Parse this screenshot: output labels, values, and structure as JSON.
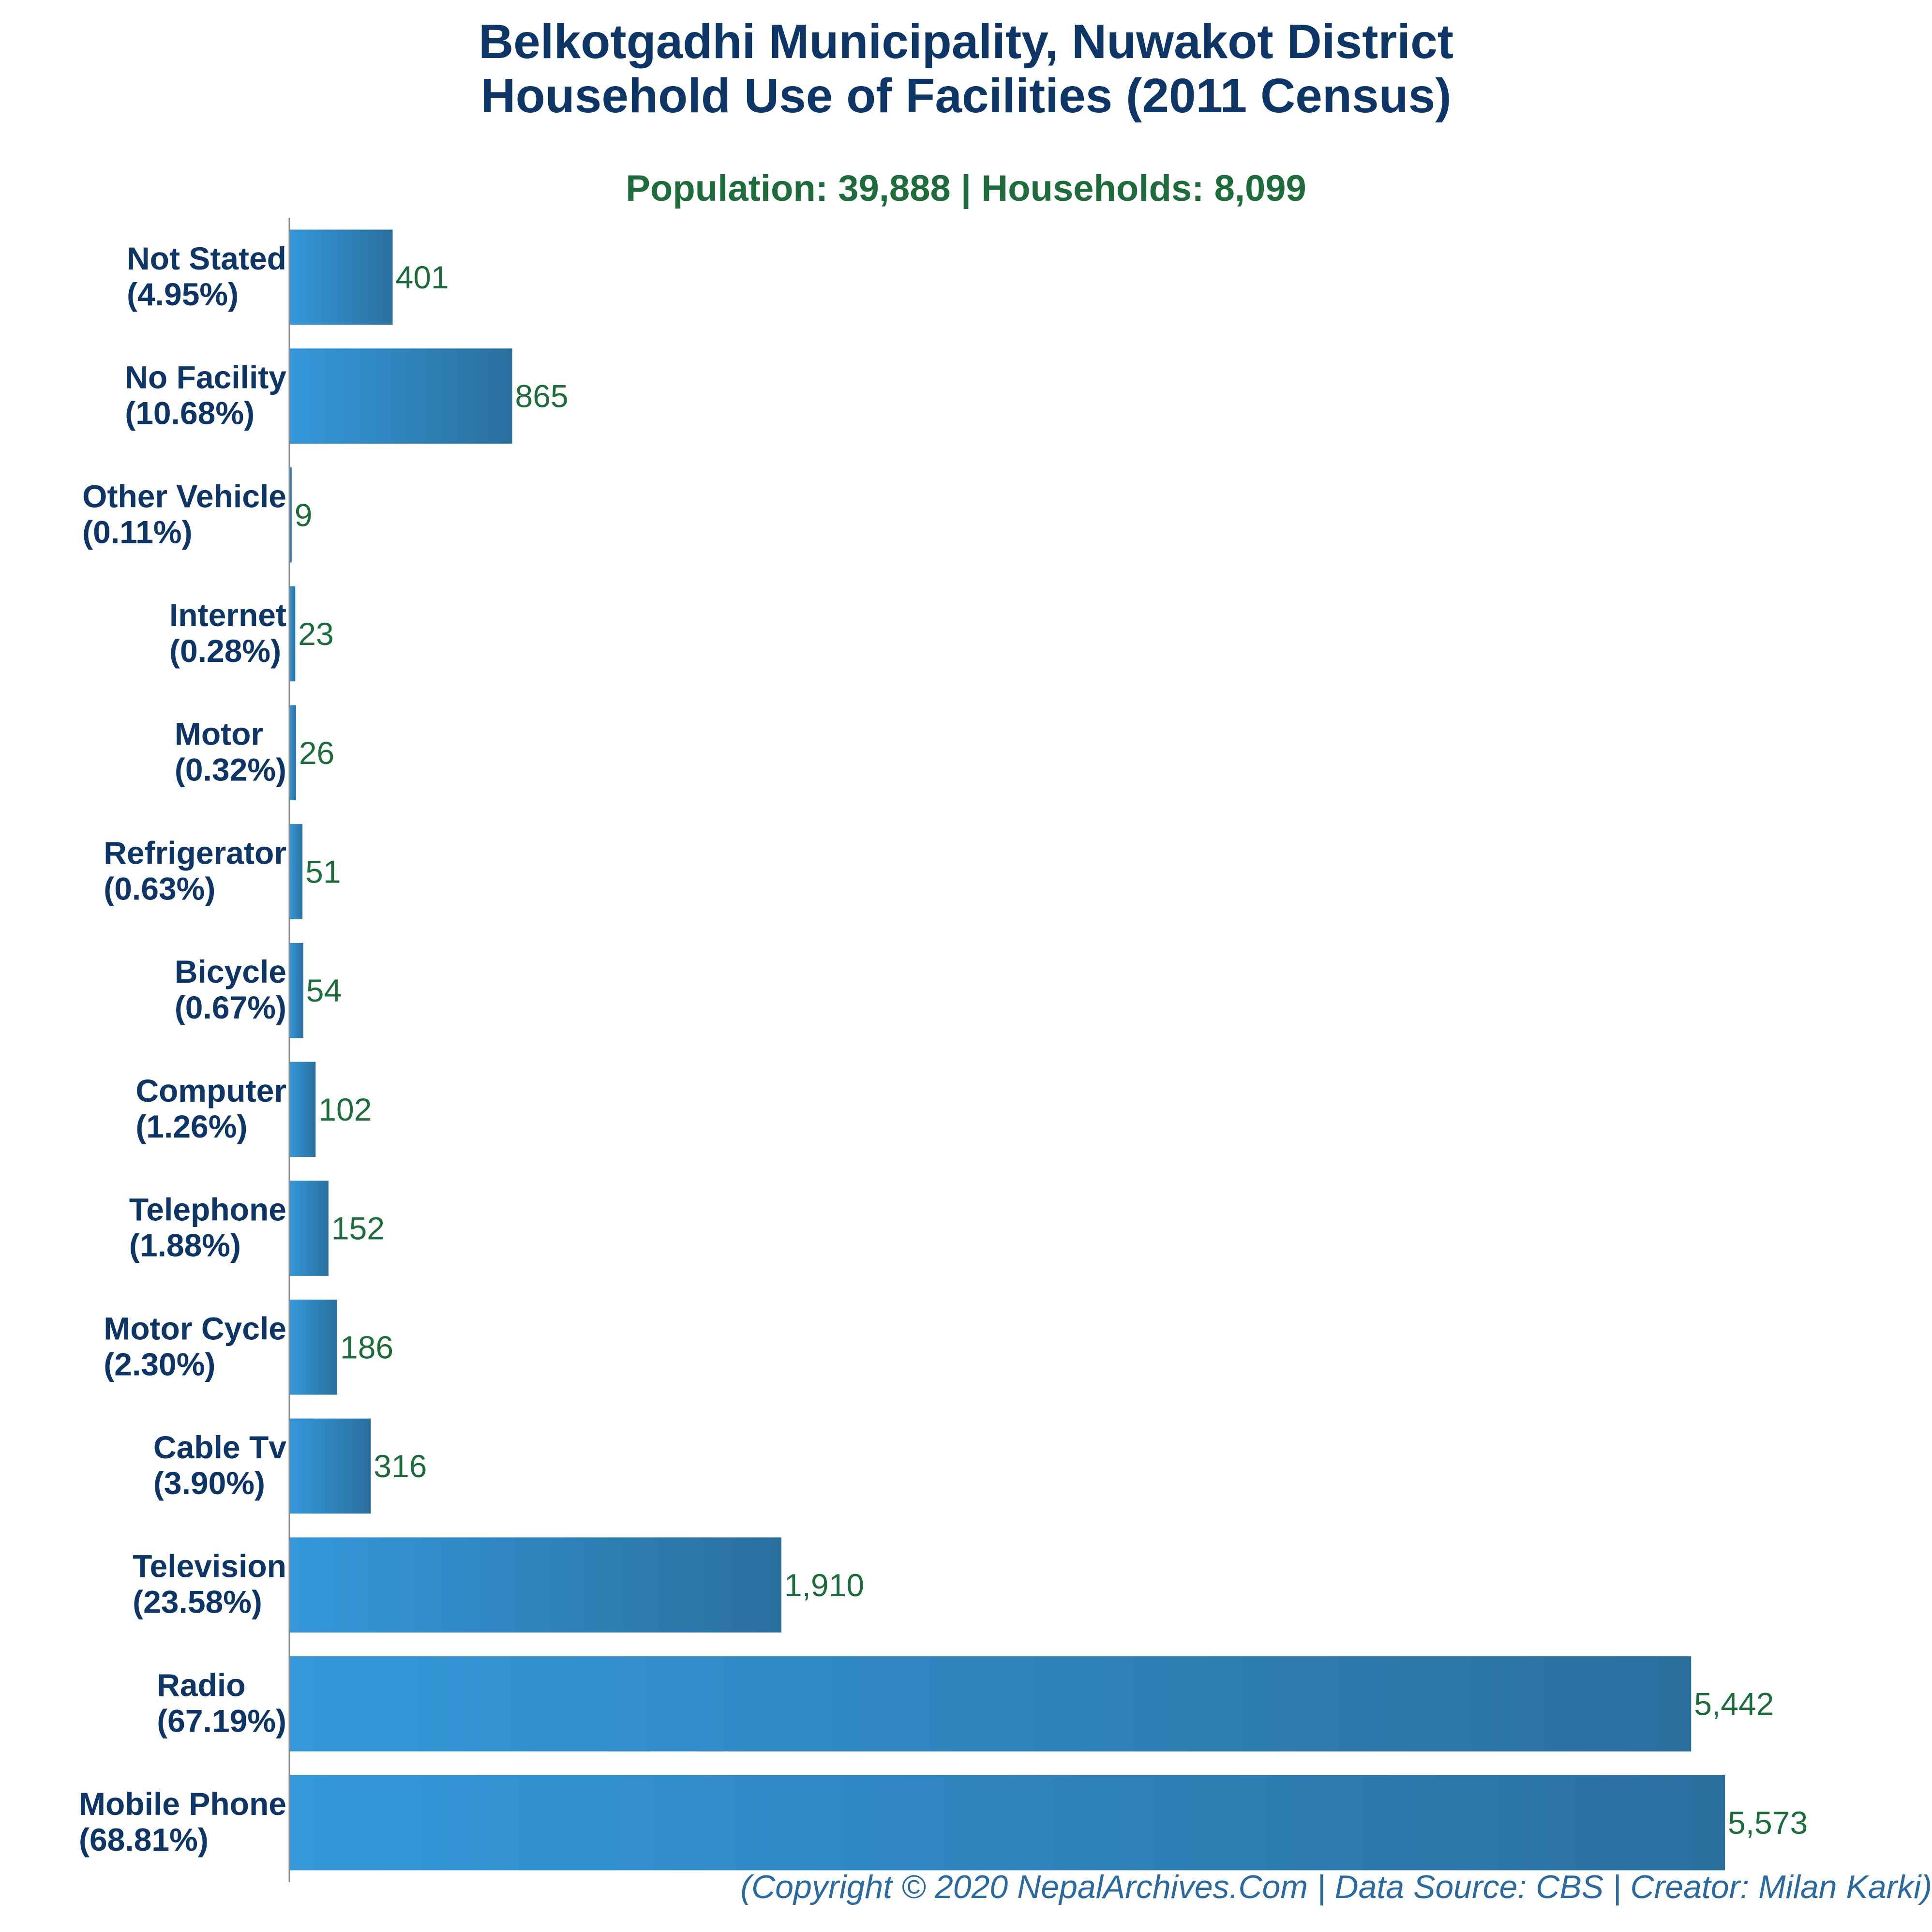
{
  "title_line1": "Belkotgadhi Municipality, Nuwakot District",
  "title_line2": "Household Use of Facilities (2011 Census)",
  "subtitle": "Population: 39,888 | Households: 8,099",
  "copyright": "(Copyright © 2020 NepalArchives.Com | Data Source: CBS | Creator: Milan Karki)",
  "colors": {
    "title": "#0d3566",
    "subtitle": "#1e6b3c",
    "bar_light": "#3498db",
    "bar_dark": "#2a6f9e",
    "value_label": "#1e6b3c",
    "category_label": "#0d3566",
    "axis": "#888888",
    "copyright": "#2b6aa0"
  },
  "chart_data": {
    "type": "bar",
    "orientation": "horizontal",
    "title": "Belkotgadhi Municipality, Nuwakot District Household Use of Facilities (2011 Census)",
    "subtitle": "Population: 39,888 | Households: 8,099",
    "xlabel": "",
    "ylabel": "",
    "grid": false,
    "xlim": [
      0,
      5600
    ],
    "categories": [
      "Not Stated",
      "No Facility",
      "Other Vehicle",
      "Internet",
      "Motor",
      "Refrigerator",
      "Bicycle",
      "Computer",
      "Telephone",
      "Motor Cycle",
      "Cable Tv",
      "Television",
      "Radio",
      "Mobile Phone"
    ],
    "percent_labels": [
      "(4.95%)",
      "(10.68%)",
      "(0.11%)",
      "(0.28%)",
      "(0.32%)",
      "(0.63%)",
      "(0.67%)",
      "(1.26%)",
      "(1.88%)",
      "(2.30%)",
      "(3.90%)",
      "(23.58%)",
      "(67.19%)",
      "(68.81%)"
    ],
    "values": [
      401,
      865,
      9,
      23,
      26,
      51,
      54,
      102,
      152,
      186,
      316,
      1910,
      5442,
      5573
    ],
    "value_labels": [
      "401",
      "865",
      "9",
      "23",
      "26",
      "51",
      "54",
      "102",
      "152",
      "186",
      "316",
      "1,910",
      "5,442",
      "5,573"
    ]
  }
}
